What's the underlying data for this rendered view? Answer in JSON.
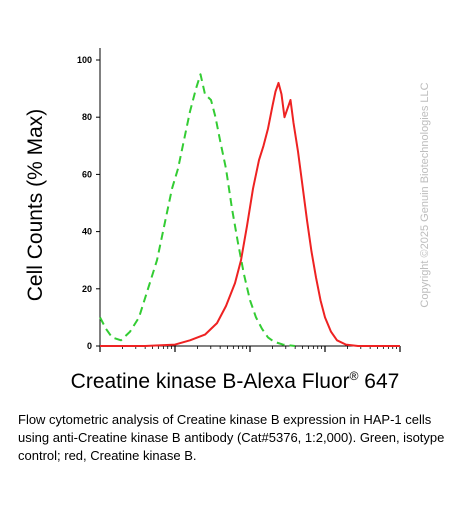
{
  "chart_data": {
    "type": "line",
    "ylabel": "Cell Counts (% Max)",
    "xlabel_main": "Creatine kinase B-Alexa Fluor",
    "xlabel_sup": "®",
    "xlabel_end": " 647",
    "ylim": [
      0,
      100
    ],
    "yticks": [
      0,
      20,
      40,
      60,
      80,
      100
    ],
    "xlim": [
      0,
      100
    ],
    "x_scale": "log",
    "grid": false,
    "series": [
      {
        "color": "#33cc33",
        "style": "dashed",
        "points": [
          [
            0,
            10
          ],
          [
            2,
            6
          ],
          [
            4,
            3
          ],
          [
            7,
            2
          ],
          [
            10,
            5
          ],
          [
            13,
            10
          ],
          [
            16,
            20
          ],
          [
            19,
            30
          ],
          [
            22,
            45
          ],
          [
            24,
            55
          ],
          [
            26,
            62
          ],
          [
            28,
            72
          ],
          [
            30,
            82
          ],
          [
            32,
            90
          ],
          [
            33.5,
            95
          ],
          [
            35,
            88
          ],
          [
            37,
            86
          ],
          [
            38.5,
            80
          ],
          [
            40,
            72
          ],
          [
            42,
            62
          ],
          [
            44,
            48
          ],
          [
            46,
            36
          ],
          [
            48,
            25
          ],
          [
            50,
            16
          ],
          [
            52,
            10
          ],
          [
            54,
            6
          ],
          [
            56,
            3
          ],
          [
            58,
            1.5
          ],
          [
            61,
            0.5
          ],
          [
            65,
            0
          ]
        ]
      },
      {
        "color": "#ee2222",
        "style": "solid",
        "points": [
          [
            0,
            0
          ],
          [
            15,
            0
          ],
          [
            25,
            0.5
          ],
          [
            30,
            2
          ],
          [
            35,
            4
          ],
          [
            39,
            8
          ],
          [
            42,
            14
          ],
          [
            45,
            22
          ],
          [
            47,
            30
          ],
          [
            49,
            42
          ],
          [
            51,
            55
          ],
          [
            53,
            65
          ],
          [
            54.5,
            70
          ],
          [
            56,
            76
          ],
          [
            57.5,
            84
          ],
          [
            58.5,
            89
          ],
          [
            59.5,
            92
          ],
          [
            60.5,
            88
          ],
          [
            61.5,
            80
          ],
          [
            62.5,
            83
          ],
          [
            63.5,
            86
          ],
          [
            64.5,
            78
          ],
          [
            66,
            68
          ],
          [
            67.5,
            56
          ],
          [
            69,
            44
          ],
          [
            70.5,
            33
          ],
          [
            72,
            24
          ],
          [
            73.5,
            16
          ],
          [
            75,
            10
          ],
          [
            77,
            5
          ],
          [
            79,
            2
          ],
          [
            82,
            0.5
          ],
          [
            86,
            0
          ],
          [
            100,
            0
          ]
        ]
      }
    ]
  },
  "watermark": "Copyright ©2025 Genuin Biotechnologies LLC",
  "caption": "Flow cytometric analysis of Creatine kinase B expression in HAP-1 cells using anti-Creatine kinase B antibody (Cat#5376, 1:2,000). Green, isotype control; red, Creatine kinase B."
}
